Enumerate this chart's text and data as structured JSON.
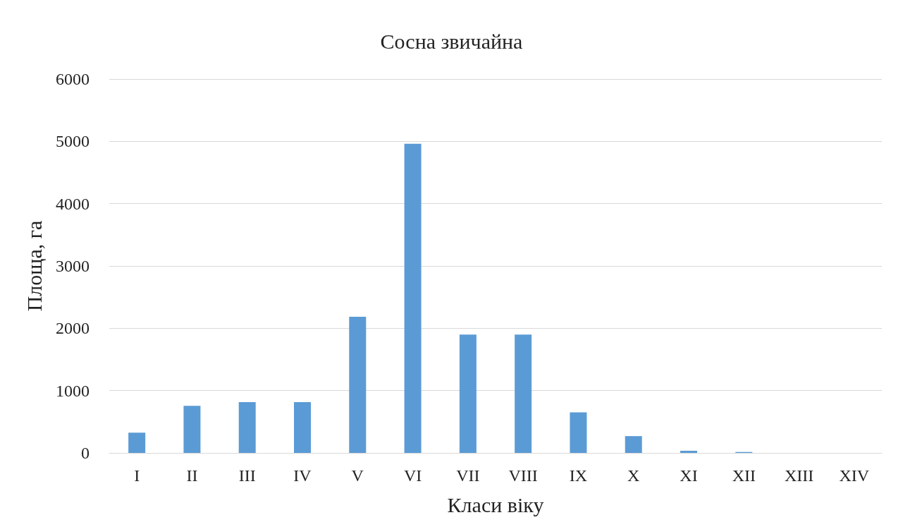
{
  "chart_data": {
    "type": "bar",
    "title": "Сосна звичайна",
    "xlabel": "Класи віку",
    "ylabel": "Площа, га",
    "categories": [
      "I",
      "II",
      "III",
      "IV",
      "V",
      "VI",
      "VII",
      "VIII",
      "IX",
      "X",
      "XI",
      "XII",
      "XIII",
      "XIV"
    ],
    "values": [
      325,
      755,
      815,
      815,
      2185,
      4960,
      1900,
      1900,
      650,
      270,
      35,
      15,
      0,
      0
    ],
    "color": "#5b9bd5",
    "ylim": [
      0,
      6000
    ],
    "yticks": [
      0,
      1000,
      2000,
      3000,
      4000,
      5000,
      6000
    ],
    "grid": "y"
  }
}
